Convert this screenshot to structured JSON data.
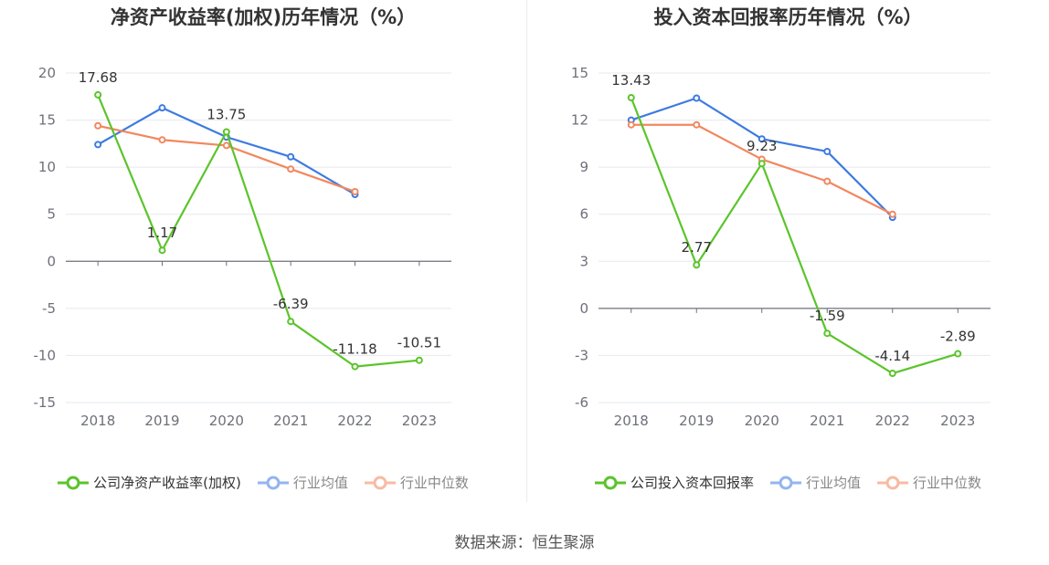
{
  "charts": [
    {
      "title": "净资产收益率(加权)历年情况（%）",
      "chart_data": {
        "type": "line",
        "title": "净资产收益率(加权)历年情况（%）",
        "x": [
          "2018",
          "2019",
          "2020",
          "2021",
          "2022",
          "2023"
        ],
        "ylim": [
          -15,
          20
        ],
        "yticks": [
          20,
          15,
          10,
          5,
          0,
          -5,
          -10,
          -15
        ],
        "grid": true,
        "legend_position": "bottom",
        "series": [
          {
            "name": "公司净资产收益率(加权)",
            "color": "#5bc42b",
            "values": [
              17.68,
              1.17,
              13.75,
              -6.39,
              -11.18,
              -10.51
            ],
            "labels": [
              "17.68",
              "1.17",
              "13.75",
              "-6.39",
              "-11.18",
              "-10.51"
            ]
          },
          {
            "name": "行业均值",
            "color": "#3d7be0",
            "values": [
              12.4,
              16.3,
              13.2,
              11.1,
              7.1,
              null
            ]
          },
          {
            "name": "行业中位数",
            "color": "#f2875f",
            "values": [
              14.4,
              12.9,
              12.3,
              9.8,
              7.4,
              null
            ]
          }
        ]
      }
    },
    {
      "title": "投入资本回报率历年情况（%）",
      "chart_data": {
        "type": "line",
        "title": "投入资本回报率历年情况（%）",
        "x": [
          "2018",
          "2019",
          "2020",
          "2021",
          "2022",
          "2023"
        ],
        "ylim": [
          -6,
          15
        ],
        "yticks": [
          15,
          12,
          9,
          6,
          3,
          0,
          -3,
          -6
        ],
        "grid": true,
        "legend_position": "bottom",
        "series": [
          {
            "name": "公司投入资本回报率",
            "color": "#5bc42b",
            "values": [
              13.43,
              2.77,
              9.23,
              -1.59,
              -4.14,
              -2.89
            ],
            "labels": [
              "13.43",
              "2.77",
              "9.23",
              "-1.59",
              "-4.14",
              "-2.89"
            ]
          },
          {
            "name": "行业均值",
            "color": "#3d7be0",
            "values": [
              12.0,
              13.4,
              10.8,
              10.0,
              5.8,
              null
            ]
          },
          {
            "name": "行业中位数",
            "color": "#f2875f",
            "values": [
              11.7,
              11.7,
              9.5,
              8.1,
              6.0,
              null
            ]
          }
        ]
      }
    }
  ],
  "source_text": "数据来源：恒生聚源"
}
